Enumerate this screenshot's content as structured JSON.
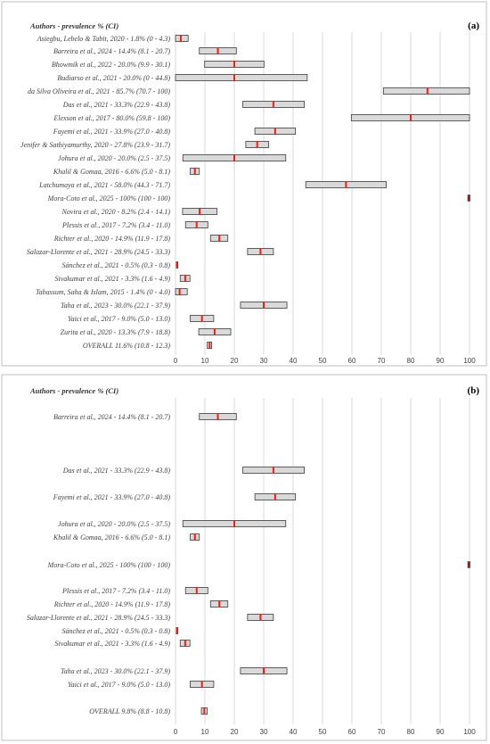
{
  "chart_data": [
    {
      "type": "forest",
      "panel_label": "(a)",
      "header": "Authors - prevalence % (CI)",
      "xlim": [
        0,
        100
      ],
      "xticks": [
        0,
        10,
        20,
        30,
        40,
        50,
        60,
        70,
        80,
        90,
        100
      ],
      "grid": true,
      "rows": [
        {
          "label": "Asiegbu, Lebelo & Tabit, 2020 - 1.8% (0 - 4.3)",
          "value": 1.8,
          "lo": 0,
          "hi": 4.3
        },
        {
          "label": "Barreira et al., 2024 - 14.4% (8.1 - 20.7)",
          "value": 14.4,
          "lo": 8.1,
          "hi": 20.7
        },
        {
          "label": "Bhowmik et al., 2022 - 20.0% (9.9 - 30.1)",
          "value": 20.0,
          "lo": 9.9,
          "hi": 30.1
        },
        {
          "label": "Budiarso et al., 2021 - 20.0% (0 - 44.8)",
          "value": 20.0,
          "lo": 0,
          "hi": 44.8
        },
        {
          "label": "da Silva Oliveira et al., 2021 - 85.7% (70.7 - 100)",
          "value": 85.7,
          "lo": 70.7,
          "hi": 100
        },
        {
          "label": "Das et al., 2021 - 33.3% (22.9 - 43.8)",
          "value": 33.3,
          "lo": 22.9,
          "hi": 43.8
        },
        {
          "label": "Elexson et al., 2017 - 80.0% (59.8 - 100)",
          "value": 80.0,
          "lo": 59.8,
          "hi": 100
        },
        {
          "label": "Fayemi et al., 2021 - 33.9% (27.0 - 40.8)",
          "value": 33.9,
          "lo": 27.0,
          "hi": 40.8
        },
        {
          "label": "Jenifer & Sathiyamurthy, 2020 - 27.8% (23.9 - 31.7)",
          "value": 27.8,
          "lo": 23.9,
          "hi": 31.7
        },
        {
          "label": "Johura et al., 2020 - 20.0% (2.5 - 37.5)",
          "value": 20.0,
          "lo": 2.5,
          "hi": 37.5
        },
        {
          "label": "Khalil & Gomaa, 2016 - 6.6% (5.0 - 8.1)",
          "value": 6.6,
          "lo": 5.0,
          "hi": 8.1
        },
        {
          "label": "Latchumaya et al., 2021 - 58.0% (44.3 - 71.7)",
          "value": 58.0,
          "lo": 44.3,
          "hi": 71.7
        },
        {
          "label": "Mora-Coto et al., 2025 - 100% (100 - 100)",
          "value": 100,
          "lo": 100,
          "hi": 100
        },
        {
          "label": "Novira et al., 2020 - 8.2% (2.4 - 14.1)",
          "value": 8.2,
          "lo": 2.4,
          "hi": 14.1
        },
        {
          "label": "Plessis et al., 2017 - 7.2% (3.4 - 11.0)",
          "value": 7.2,
          "lo": 3.4,
          "hi": 11.0
        },
        {
          "label": "Richter et al., 2020 - 14.9% (11.9 - 17.8)",
          "value": 14.9,
          "lo": 11.9,
          "hi": 17.8
        },
        {
          "label": "Salazar-Llorente et al., 2021 - 28.9% (24.5 - 33.3)",
          "value": 28.9,
          "lo": 24.5,
          "hi": 33.3
        },
        {
          "label": "Sánchez et al., 2021 - 0.5% (0.3 - 0.8)",
          "value": 0.5,
          "lo": 0.3,
          "hi": 0.8
        },
        {
          "label": "Sivakumar et al., 2021 - 3.3% (1.6 - 4.9)",
          "value": 3.3,
          "lo": 1.6,
          "hi": 4.9
        },
        {
          "label": "Tabassum, Saha & Islam, 2015 - 1.4% (0 - 4.0)",
          "value": 1.4,
          "lo": 0,
          "hi": 4.0
        },
        {
          "label": "Taha et al., 2023 - 30.0% (22.1 - 37.9)",
          "value": 30.0,
          "lo": 22.1,
          "hi": 37.9
        },
        {
          "label": "Yaici et al., 2017 - 9.0% (5.0 - 13.0)",
          "value": 9.0,
          "lo": 5.0,
          "hi": 13.0
        },
        {
          "label": "Zurita et al., 2020 - 13.3% (7.9 - 18.8)",
          "value": 13.3,
          "lo": 7.9,
          "hi": 18.8
        },
        {
          "label": "OVERALL 11.6% (10.8 - 12.3)",
          "value": 11.6,
          "lo": 10.8,
          "hi": 12.3
        }
      ]
    },
    {
      "type": "forest",
      "panel_label": "(b)",
      "header": "Authors - prevalence % (CI)",
      "xlim": [
        0,
        100
      ],
      "xticks": [
        0,
        10,
        20,
        30,
        40,
        50,
        60,
        70,
        80,
        90,
        100
      ],
      "grid": true,
      "rows": [
        {
          "label": "Barreira et al., 2024 - 14.4% (8.1 - 20.7)",
          "value": 14.4,
          "lo": 8.1,
          "hi": 20.7
        },
        {
          "label": "Das et al., 2021 - 33.3% (22.9 - 43.8)",
          "value": 33.3,
          "lo": 22.9,
          "hi": 43.8
        },
        {
          "label": "Fayemi et al., 2021 - 33.9% (27.0 - 40.8)",
          "value": 33.9,
          "lo": 27.0,
          "hi": 40.8
        },
        {
          "label": "Johura et al., 2020 - 20.0% (2.5 - 37.5)",
          "value": 20.0,
          "lo": 2.5,
          "hi": 37.5
        },
        {
          "label": "Khalil & Gomaa, 2016 - 6.6% (5.0 - 8.1)",
          "value": 6.6,
          "lo": 5.0,
          "hi": 8.1
        },
        {
          "label": "Mora-Coto et al., 2025 - 100% (100 - 100)",
          "value": 100,
          "lo": 100,
          "hi": 100
        },
        {
          "label": "Plessis et al., 2017 - 7.2% (3.4 - 11.0)",
          "value": 7.2,
          "lo": 3.4,
          "hi": 11.0
        },
        {
          "label": "Richter et al., 2020 - 14.9% (11.9 - 17.8)",
          "value": 14.9,
          "lo": 11.9,
          "hi": 17.8
        },
        {
          "label": "Salazar-Llorente et al., 2021 - 28.9% (24.5 - 33.3)",
          "value": 28.9,
          "lo": 24.5,
          "hi": 33.3
        },
        {
          "label": "Sánchez et al., 2021 - 0.5% (0.3 - 0.8)",
          "value": 0.5,
          "lo": 0.3,
          "hi": 0.8
        },
        {
          "label": "Sivakumar et al., 2021 - 3.3% (1.6 - 4.9)",
          "value": 3.3,
          "lo": 1.6,
          "hi": 4.9
        },
        {
          "label": "Taha et al., 2023 - 30.0% (22.1 - 37.9)",
          "value": 30.0,
          "lo": 22.1,
          "hi": 37.9
        },
        {
          "label": "Yaici et al., 2017 - 9.0% (5.0 - 13.0)",
          "value": 9.0,
          "lo": 5.0,
          "hi": 13.0
        },
        {
          "label": "OVERALL 9.8% (8.8 - 10.8)",
          "value": 9.8,
          "lo": 8.8,
          "hi": 10.8
        }
      ]
    }
  ],
  "colors": {
    "ci_fill": "#d9d9d9",
    "ci_stroke": "#3a3a3a",
    "point": "#e8221b",
    "point_at_limit": "#a8161a",
    "grid": "#d9d9d9"
  }
}
